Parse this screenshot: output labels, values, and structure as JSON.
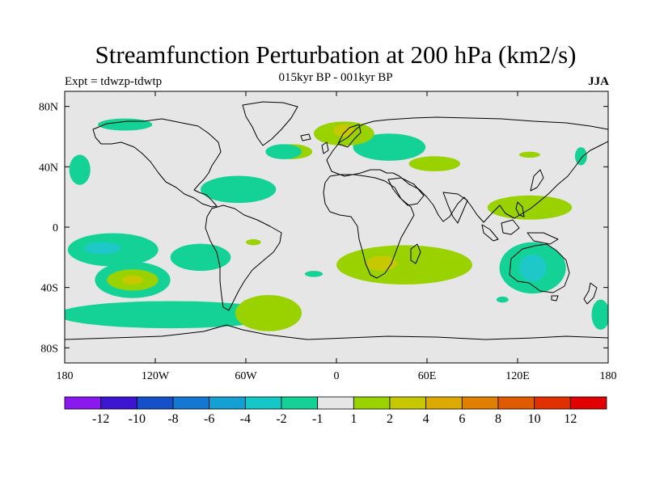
{
  "header": {
    "title": "Streamfunction Perturbation at 200 hPa (km2/s)",
    "subtitle": "015kyr BP - 001kyr BP",
    "left_label": "Expt = tdwzp-tdwtp",
    "right_label": "JJA"
  },
  "map": {
    "projection": "cylindrical equidistant",
    "background_color": "#e6e6e6",
    "lon_range": [
      -180,
      180
    ],
    "lat_range": [
      -90,
      90
    ],
    "lon_tick_labels": [
      {
        "lon": -180,
        "label": "180"
      },
      {
        "lon": -120,
        "label": "120W"
      },
      {
        "lon": -60,
        "label": "60W"
      },
      {
        "lon": 0,
        "label": "0"
      },
      {
        "lon": 60,
        "label": "60E"
      },
      {
        "lon": 120,
        "label": "120E"
      },
      {
        "lon": 180,
        "label": "180"
      }
    ],
    "lat_tick_labels": [
      {
        "lat": 80,
        "label": "80N"
      },
      {
        "lat": 40,
        "label": "40N"
      },
      {
        "lat": 0,
        "label": "0"
      },
      {
        "lat": -40,
        "label": "40S"
      },
      {
        "lat": -80,
        "label": "80S"
      }
    ],
    "features": [
      {
        "name": "n-pacific-lobe",
        "lon": -170,
        "lat": 38,
        "rlon": 7,
        "rlat": 10,
        "level": "-2"
      },
      {
        "name": "n-atlantic-pos-band",
        "lon": -30,
        "lat": 50,
        "rlon": 14,
        "rlat": 5,
        "level": "2"
      },
      {
        "name": "arctic-canada",
        "lon": -140,
        "lat": 68,
        "rlon": 18,
        "rlat": 4,
        "level": "-2"
      },
      {
        "name": "w-atlantic-neg",
        "lon": -65,
        "lat": 25,
        "rlon": 25,
        "rlat": 9,
        "level": "-2"
      },
      {
        "name": "n-atlantic-high",
        "lon": -35,
        "lat": 50,
        "rlon": 12,
        "rlat": 5,
        "level": "-2"
      },
      {
        "name": "europe-pos",
        "lon": 5,
        "lat": 62,
        "rlon": 20,
        "rlat": 8,
        "level": "2"
      },
      {
        "name": "europe-center",
        "lon": 5,
        "lat": 64,
        "rlon": 7,
        "rlat": 4,
        "level": "4"
      },
      {
        "name": "e-europe-neg",
        "lon": 35,
        "lat": 53,
        "rlon": 24,
        "rlat": 9,
        "level": "-2"
      },
      {
        "name": "central-asia-pos",
        "lon": 65,
        "lat": 42,
        "rlon": 17,
        "rlat": 5,
        "level": "2"
      },
      {
        "name": "e-asia-pos",
        "lon": 128,
        "lat": 48,
        "rlon": 7,
        "rlat": 2,
        "level": "2"
      },
      {
        "name": "n-pacific-east",
        "lon": 162,
        "lat": 47,
        "rlon": 4,
        "rlat": 6,
        "level": "-2"
      },
      {
        "name": "s-asia-pos",
        "lon": 128,
        "lat": 13,
        "rlon": 28,
        "rlat": 8,
        "level": "2"
      },
      {
        "name": "tropical-pacific",
        "lon": -148,
        "lat": -15,
        "rlon": 30,
        "rlat": 11,
        "level": "-2"
      },
      {
        "name": "tropical-pacific-core",
        "lon": -155,
        "lat": -14,
        "rlon": 12,
        "rlat": 4,
        "level": "-3"
      },
      {
        "name": "s-pacific-pos",
        "lon": -135,
        "lat": -35,
        "rlon": 17,
        "rlat": 7,
        "level": "2"
      },
      {
        "name": "s-pacific-pos-core",
        "lon": -135,
        "lat": -35,
        "rlon": 7,
        "rlat": 3,
        "level": "4"
      },
      {
        "name": "s-pacific-ring",
        "lon": -135,
        "lat": -35,
        "rlon": 25,
        "rlat": 12,
        "level": "-2"
      },
      {
        "name": "se-pacific-neg",
        "lon": -90,
        "lat": -20,
        "rlon": 20,
        "rlat": 9,
        "level": "-2"
      },
      {
        "name": "south-pacific-band",
        "lon": -110,
        "lat": -58,
        "rlon": 75,
        "rlat": 9,
        "level": "-2"
      },
      {
        "name": "s-atlantic-pos",
        "lon": -45,
        "lat": -57,
        "rlon": 22,
        "rlat": 12,
        "level": "2"
      },
      {
        "name": "s-america-patch",
        "lon": -55,
        "lat": -10,
        "rlon": 5,
        "rlat": 2,
        "level": "2"
      },
      {
        "name": "s-atlantic-small",
        "lon": -15,
        "lat": -31,
        "rlon": 6,
        "rlat": 2,
        "level": "-2"
      },
      {
        "name": "indian-ocean-pos",
        "lon": 45,
        "lat": -25,
        "rlon": 45,
        "rlat": 13,
        "level": "2"
      },
      {
        "name": "africa-core",
        "lon": 30,
        "lat": -24,
        "rlon": 10,
        "rlat": 5,
        "level": "4"
      },
      {
        "name": "australia-neg",
        "lon": 130,
        "lat": -27,
        "rlon": 22,
        "rlat": 17,
        "level": "-2"
      },
      {
        "name": "australia-core",
        "lon": 130,
        "lat": -27,
        "rlon": 9,
        "rlat": 9,
        "level": "-3"
      },
      {
        "name": "se-indian-neg",
        "lon": 175,
        "lat": -58,
        "rlon": 6,
        "rlat": 10,
        "level": "-2"
      },
      {
        "name": "s-indian-small",
        "lon": 110,
        "lat": -48,
        "rlon": 4,
        "rlat": 2,
        "level": "-2"
      }
    ]
  },
  "colorbar": {
    "colors": [
      "#8a19f0",
      "#3c14d2",
      "#1450c8",
      "#1478d2",
      "#14a0d2",
      "#14c8c8",
      "#14d296",
      "#e6e6e6",
      "#9ad200",
      "#c8c800",
      "#dcaa00",
      "#e08000",
      "#e05a00",
      "#e03000",
      "#e00000"
    ],
    "labels": [
      "-12",
      "-10",
      "-8",
      "-6",
      "-4",
      "-2",
      "-1",
      "1",
      "2",
      "4",
      "6",
      "8",
      "10",
      "12"
    ]
  },
  "level_colors": {
    "-3": "#1ec8c8",
    "-2": "#14d296",
    "2": "#9ad200",
    "4": "#c8c800"
  }
}
